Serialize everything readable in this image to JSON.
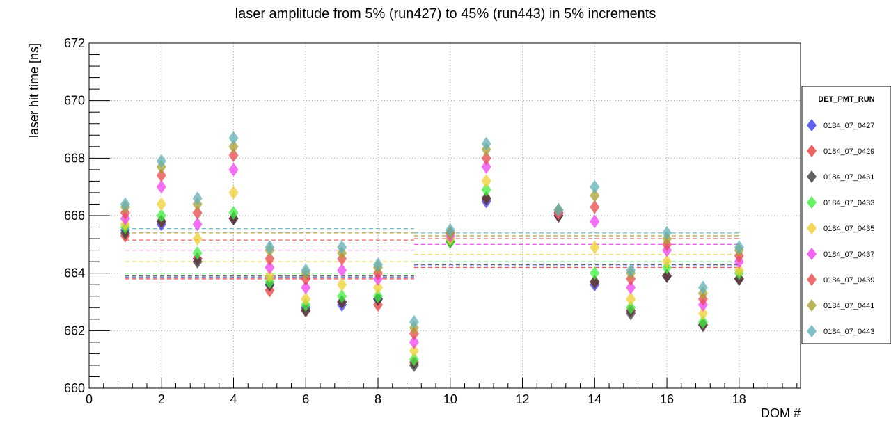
{
  "chart_data": {
    "type": "scatter",
    "title": "laser amplitude from 5% (run427) to 45% (run443) in 5% increments",
    "xlabel": "DOM #",
    "ylabel": "laser hit time [ns]",
    "xlim": [
      0,
      19.7
    ],
    "ylim": [
      660,
      672
    ],
    "x_tick_labels": [
      "0",
      "2",
      "4",
      "6",
      "8",
      "10",
      "12",
      "14",
      "16",
      "18"
    ],
    "y_tick_labels": [
      "660",
      "662",
      "664",
      "666",
      "668",
      "670",
      "672"
    ],
    "grid": true,
    "legend": {
      "title": "DET_PMT_RUN",
      "placement": "right"
    },
    "x": [
      1,
      2,
      3,
      4,
      5,
      6,
      7,
      8,
      9,
      10,
      11,
      13,
      14,
      15,
      16,
      17,
      18
    ],
    "series": [
      {
        "name": "0184_07_0427",
        "color": "#3a3af0",
        "values": [
          665.5,
          665.7,
          664.5,
          665.9,
          663.6,
          662.8,
          662.9,
          663.1,
          660.9,
          665.1,
          666.5,
          666.0,
          663.6,
          662.7,
          663.9,
          662.2,
          663.8
        ],
        "means": [
          663.85,
          664.25
        ]
      },
      {
        "name": "0184_07_0429",
        "color": "#e83a3a",
        "values": [
          665.3,
          665.8,
          664.5,
          665.9,
          663.4,
          662.7,
          663.0,
          662.9,
          660.9,
          665.1,
          666.6,
          666.0,
          663.7,
          662.7,
          663.9,
          662.2,
          663.8
        ],
        "means": [
          663.8,
          664.2
        ]
      },
      {
        "name": "0184_07_0431",
        "color": "#3c3c3c",
        "values": [
          665.4,
          665.8,
          664.4,
          665.9,
          663.6,
          662.7,
          663.0,
          663.1,
          660.8,
          665.1,
          666.6,
          666.0,
          663.7,
          662.6,
          663.9,
          662.2,
          663.8
        ],
        "means": [
          663.9,
          664.3
        ]
      },
      {
        "name": "0184_07_0433",
        "color": "#3ef03e",
        "values": [
          665.6,
          666.0,
          664.7,
          666.1,
          663.7,
          662.9,
          663.2,
          663.2,
          661.0,
          665.1,
          666.9,
          666.1,
          664.0,
          662.8,
          664.2,
          662.3,
          664.0
        ],
        "means": [
          664.0,
          664.4
        ]
      },
      {
        "name": "0184_07_0435",
        "color": "#f0d030",
        "values": [
          665.7,
          666.4,
          665.2,
          666.8,
          663.9,
          663.1,
          663.6,
          663.5,
          661.3,
          665.2,
          667.2,
          666.1,
          664.9,
          663.1,
          664.4,
          662.6,
          664.1
        ],
        "means": [
          664.4,
          664.65
        ]
      },
      {
        "name": "0184_07_0437",
        "color": "#f040f0",
        "values": [
          665.9,
          667.0,
          665.7,
          667.6,
          664.2,
          663.5,
          664.1,
          663.8,
          661.6,
          665.3,
          667.7,
          666.1,
          665.8,
          663.5,
          664.8,
          662.9,
          664.4
        ],
        "means": [
          664.8,
          665.0
        ]
      },
      {
        "name": "0184_07_0439",
        "color": "#e84848",
        "values": [
          666.1,
          667.4,
          666.1,
          668.1,
          664.5,
          663.8,
          664.5,
          664.0,
          661.9,
          665.4,
          668.0,
          666.1,
          666.3,
          663.8,
          665.0,
          663.1,
          664.6
        ],
        "means": [
          665.15,
          665.2
        ]
      },
      {
        "name": "0184_07_0441",
        "color": "#a8a030",
        "values": [
          666.3,
          667.7,
          666.4,
          668.4,
          664.8,
          664.0,
          664.7,
          664.2,
          662.1,
          665.4,
          668.3,
          666.2,
          666.7,
          664.0,
          665.2,
          663.3,
          664.8
        ],
        "means": [
          665.4,
          665.3
        ]
      },
      {
        "name": "0184_07_0443",
        "color": "#60b0b8",
        "values": [
          666.4,
          667.9,
          666.6,
          668.7,
          664.9,
          664.1,
          664.9,
          664.3,
          662.3,
          665.5,
          668.5,
          666.2,
          667.0,
          664.1,
          665.4,
          663.5,
          664.9
        ],
        "means": [
          665.55,
          665.4
        ]
      }
    ],
    "mean_line_ranges": [
      [
        1,
        9
      ],
      [
        9,
        18
      ]
    ]
  }
}
